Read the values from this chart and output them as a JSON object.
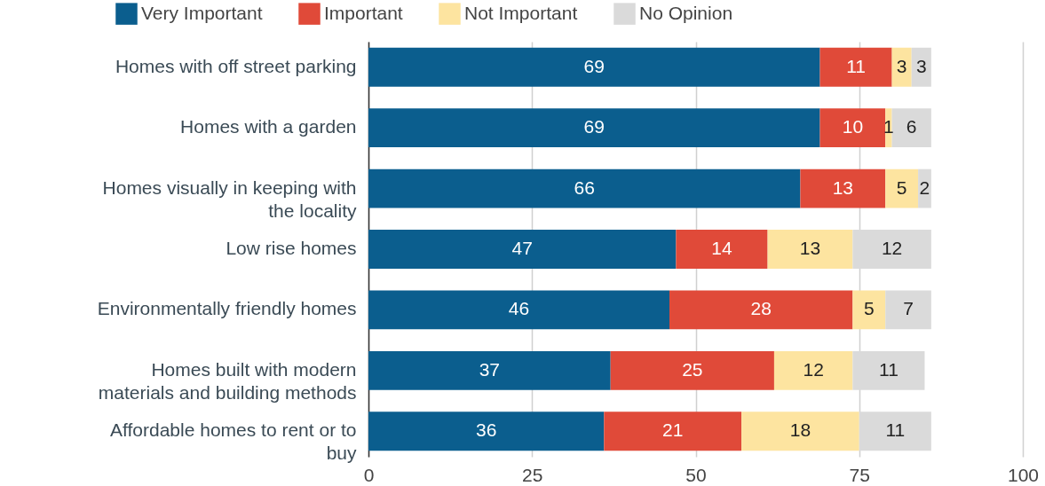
{
  "chart_data": {
    "type": "bar",
    "orientation": "horizontal",
    "stacked": true,
    "data_labels": true,
    "grid": "x",
    "legend": "top",
    "categories": [
      "Homes with off street parking",
      "Homes with a garden",
      "Homes visually in keeping with the locality",
      "Low rise homes",
      "Environmentally friendly homes",
      "Homes built with modern materials and building methods",
      "Affordable homes to rent or to buy"
    ],
    "series": [
      {
        "name": "Very Important",
        "color": "#0b5e8e",
        "values": [
          69,
          69,
          66,
          47,
          46,
          37,
          36
        ]
      },
      {
        "name": "Important",
        "color": "#e04a39",
        "values": [
          11,
          10,
          13,
          14,
          28,
          25,
          21
        ]
      },
      {
        "name": "Not Important",
        "color": "#fde4a0",
        "values": [
          3,
          1,
          5,
          13,
          5,
          12,
          18
        ]
      },
      {
        "name": "No Opinion",
        "color": "#dadada",
        "values": [
          3,
          6,
          2,
          12,
          7,
          11,
          11
        ]
      }
    ],
    "xlim": [
      0,
      100
    ],
    "xticks": [
      0,
      25,
      50,
      75,
      100
    ]
  }
}
